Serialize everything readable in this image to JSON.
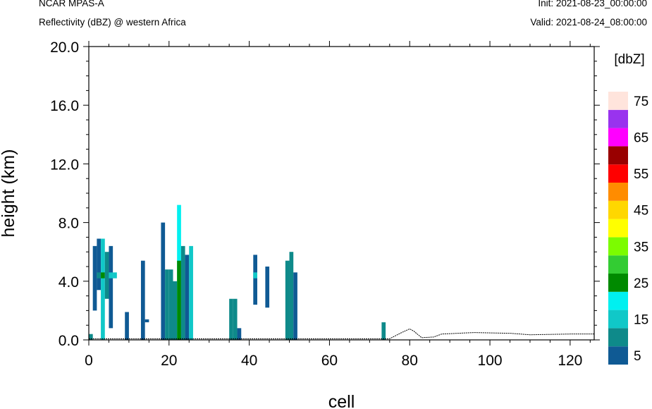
{
  "header": {
    "model": "NCAR MPAS-A",
    "field": "Reflectivity (dBZ) @ western Africa",
    "init": "Init: 2021-08-23_00:00:00",
    "valid": "Valid: 2021-08-24_08:00:00"
  },
  "chart_data": {
    "type": "heatmap",
    "xlabel": "cell",
    "ylabel": "height (km)",
    "xlim": [
      0,
      126
    ],
    "ylim": [
      0,
      20
    ],
    "xticks": [
      0,
      20,
      40,
      60,
      80,
      100,
      120
    ],
    "yticks": [
      0,
      4,
      8,
      12,
      16,
      20
    ],
    "ytick_labels": [
      "0.0",
      "4.0",
      "8.0",
      "12.0",
      "16.0",
      "20.0"
    ],
    "colorbar": {
      "units_label": "[dbZ]",
      "levels": [
        5,
        10,
        15,
        20,
        25,
        30,
        35,
        40,
        45,
        50,
        55,
        60,
        65,
        70,
        75
      ],
      "tick_labels": [
        "5",
        "15",
        "25",
        "35",
        "45",
        "55",
        "65",
        "75"
      ],
      "colors": [
        "#0f5a94",
        "#0e8a8a",
        "#10c8c8",
        "#00f0f0",
        "#008a00",
        "#33cc33",
        "#7cfc00",
        "#ffff00",
        "#ffd700",
        "#ff8c00",
        "#ff0000",
        "#990000",
        "#ff00ff",
        "#9933ee",
        "#ffe4dc"
      ]
    },
    "cells": [
      {
        "x": 0.0,
        "y0": 0.0,
        "y1": 0.4,
        "dbz": 10
      },
      {
        "x": 1.0,
        "y0": 2.0,
        "y1": 6.4,
        "dbz": 5
      },
      {
        "x": 2.0,
        "y0": 3.4,
        "y1": 6.9,
        "dbz": 5
      },
      {
        "x": 3.0,
        "y0": 0.0,
        "y1": 6.9,
        "dbz": 15
      },
      {
        "x": 2.0,
        "y0": 4.2,
        "y1": 4.6,
        "dbz": 10
      },
      {
        "x": 3.0,
        "y0": 4.2,
        "y1": 4.6,
        "dbz": 25
      },
      {
        "x": 4.0,
        "y0": 2.8,
        "y1": 6.0,
        "dbz": 10
      },
      {
        "x": 5.0,
        "y0": 0.8,
        "y1": 6.4,
        "dbz": 5
      },
      {
        "x": 5.0,
        "y0": 4.2,
        "y1": 4.6,
        "dbz": 15
      },
      {
        "x": 6.0,
        "y0": 4.2,
        "y1": 4.6,
        "dbz": 15
      },
      {
        "x": 9.0,
        "y0": 0.0,
        "y1": 1.9,
        "dbz": 5
      },
      {
        "x": 13.0,
        "y0": 0.0,
        "y1": 5.4,
        "dbz": 5
      },
      {
        "x": 14.0,
        "y0": 1.2,
        "y1": 1.4,
        "dbz": 5
      },
      {
        "x": 18.0,
        "y0": 0.0,
        "y1": 8.0,
        "dbz": 5
      },
      {
        "x": 19.0,
        "y0": 0.0,
        "y1": 4.8,
        "dbz": 10
      },
      {
        "x": 20.0,
        "y0": 0.0,
        "y1": 4.8,
        "dbz": 10
      },
      {
        "x": 21.0,
        "y0": 0.0,
        "y1": 4.0,
        "dbz": 10
      },
      {
        "x": 22.0,
        "y0": 0.0,
        "y1": 9.2,
        "dbz": 20
      },
      {
        "x": 22.0,
        "y0": 0.0,
        "y1": 5.4,
        "dbz": 25
      },
      {
        "x": 23.0,
        "y0": 0.0,
        "y1": 6.4,
        "dbz": 10
      },
      {
        "x": 24.0,
        "y0": 0.0,
        "y1": 5.8,
        "dbz": 5
      },
      {
        "x": 25.0,
        "y0": 0.0,
        "y1": 6.4,
        "dbz": 15
      },
      {
        "x": 35.0,
        "y0": 0.0,
        "y1": 2.8,
        "dbz": 10
      },
      {
        "x": 36.0,
        "y0": 0.0,
        "y1": 2.8,
        "dbz": 10
      },
      {
        "x": 37.0,
        "y0": 0.0,
        "y1": 0.8,
        "dbz": 5
      },
      {
        "x": 41.0,
        "y0": 2.4,
        "y1": 5.8,
        "dbz": 5
      },
      {
        "x": 41.0,
        "y0": 4.2,
        "y1": 4.6,
        "dbz": 15
      },
      {
        "x": 44.0,
        "y0": 2.2,
        "y1": 5.0,
        "dbz": 5
      },
      {
        "x": 49.0,
        "y0": 0.0,
        "y1": 5.4,
        "dbz": 10
      },
      {
        "x": 50.0,
        "y0": 0.0,
        "y1": 6.0,
        "dbz": 10
      },
      {
        "x": 51.0,
        "y0": 0.0,
        "y1": 4.6,
        "dbz": 5
      },
      {
        "x": 73.0,
        "y0": 0.0,
        "y1": 1.2,
        "dbz": 10
      }
    ],
    "terrain": [
      [
        0,
        0.08
      ],
      [
        75,
        0.08
      ],
      [
        78,
        0.5
      ],
      [
        80,
        0.75
      ],
      [
        81,
        0.6
      ],
      [
        83,
        0.15
      ],
      [
        86,
        0.2
      ],
      [
        88,
        0.4
      ],
      [
        92,
        0.45
      ],
      [
        96,
        0.5
      ],
      [
        105,
        0.45
      ],
      [
        110,
        0.35
      ],
      [
        120,
        0.4
      ],
      [
        126,
        0.4
      ]
    ]
  }
}
